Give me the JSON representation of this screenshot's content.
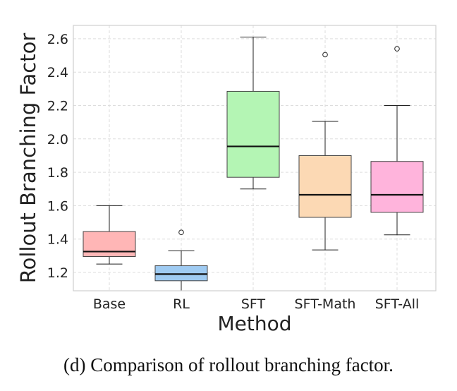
{
  "chart_data": {
    "type": "box",
    "xlabel": "Method",
    "ylabel": "Rollout Branching Factor",
    "caption": "(d) Comparison of rollout branching factor.",
    "ylim": [
      1.09,
      2.68
    ],
    "yticks": [
      "1.2",
      "1.4",
      "1.6",
      "1.8",
      "2.0",
      "2.2",
      "2.4",
      "2.6"
    ],
    "grid": true,
    "categories": [
      "Base",
      "RL",
      "SFT",
      "SFT-Math",
      "SFT-All"
    ],
    "boxes": [
      {
        "category": "Base",
        "whisker_low": 1.25,
        "q1": 1.295,
        "median": 1.325,
        "q3": 1.445,
        "whisker_high": 1.6,
        "outliers": [],
        "color": "#ffb6b6"
      },
      {
        "category": "RL",
        "whisker_low": 1.09,
        "q1": 1.15,
        "median": 1.19,
        "q3": 1.24,
        "whisker_high": 1.33,
        "outliers": [
          1.44
        ],
        "color": "#9fcbf2"
      },
      {
        "category": "SFT",
        "whisker_low": 1.7,
        "q1": 1.77,
        "median": 1.955,
        "q3": 2.285,
        "whisker_high": 2.61,
        "outliers": [],
        "color": "#b4f5b4"
      },
      {
        "category": "SFT-Math",
        "whisker_low": 1.335,
        "q1": 1.53,
        "median": 1.665,
        "q3": 1.9,
        "whisker_high": 2.105,
        "outliers": [
          2.505
        ],
        "color": "#fcd9b4"
      },
      {
        "category": "SFT-All",
        "whisker_low": 1.425,
        "q1": 1.56,
        "median": 1.665,
        "q3": 1.865,
        "whisker_high": 2.2,
        "outliers": [
          2.54
        ],
        "color": "#ffb4dc"
      }
    ]
  }
}
